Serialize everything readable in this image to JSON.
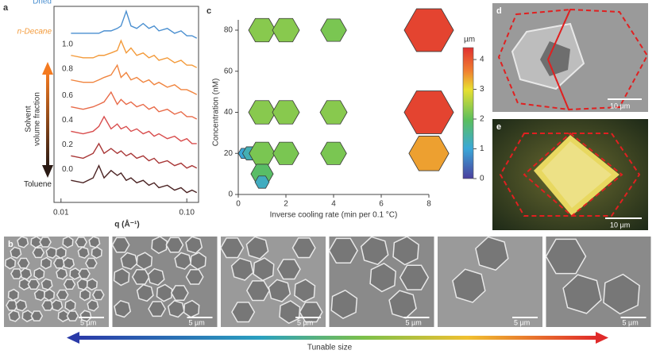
{
  "chart_data": [
    {
      "type": "line",
      "panel": "a",
      "xlabel": "q (Å⁻¹)",
      "ylabel": [
        "Solvent",
        "volume fraction"
      ],
      "log_x": true,
      "xlim": [
        0.0088,
        0.124
      ],
      "xticks": [
        0.01,
        {
          "value": 0.1,
          "label": "0.10"
        }
      ],
      "ylim": [
        0,
        80
      ],
      "x": [
        0.012,
        0.015,
        0.018,
        0.02,
        0.022,
        0.025,
        0.028,
        0.03,
        0.033,
        0.036,
        0.04,
        0.045,
        0.05,
        0.055,
        0.06,
        0.07,
        0.08,
        0.09,
        0.1,
        0.11,
        0.12
      ],
      "series": [
        {
          "name": "Dried",
          "color": "#4a8fd0",
          "values": [
            69,
            69,
            69,
            69,
            70,
            70,
            71,
            72,
            78,
            72,
            71,
            73,
            71,
            72,
            70,
            71,
            69,
            70,
            68,
            68,
            67
          ]
        },
        {
          "name": "1.0",
          "color": "#f39a3a",
          "values": [
            60,
            59,
            59,
            60,
            60,
            61,
            62,
            66,
            61,
            63,
            60,
            61,
            59,
            60,
            58,
            59,
            57,
            58,
            56,
            56,
            55
          ]
        },
        {
          "name": "0.8",
          "color": "#f0843e",
          "values": [
            50,
            49,
            49,
            50,
            51,
            52,
            56,
            51,
            53,
            50,
            51,
            49,
            50,
            48,
            49,
            47,
            48,
            46,
            46,
            45,
            44
          ]
        },
        {
          "name": "0.6",
          "color": "#e86a48",
          "values": [
            39,
            38,
            39,
            40,
            41,
            45,
            40,
            42,
            40,
            41,
            39,
            40,
            38,
            39,
            37,
            38,
            36,
            37,
            35,
            35,
            34
          ]
        },
        {
          "name": "0.4",
          "color": "#d84c4c",
          "values": [
            29,
            28,
            29,
            31,
            35,
            30,
            32,
            30,
            31,
            29,
            30,
            28,
            29,
            27,
            28,
            26,
            27,
            25,
            26,
            24,
            24
          ]
        },
        {
          "name": "0.2",
          "color": "#a83636",
          "values": [
            19,
            18,
            20,
            24,
            20,
            22,
            20,
            21,
            19,
            20,
            18,
            19,
            17,
            18,
            16,
            17,
            15,
            16,
            14,
            15,
            14
          ]
        },
        {
          "name": "0.0",
          "color": "#4a2222",
          "values": [
            9,
            8,
            10,
            15,
            10,
            13,
            11,
            12,
            9,
            10,
            8,
            9,
            7,
            8,
            6,
            7,
            5,
            6,
            4,
            5,
            4
          ]
        }
      ],
      "annotations": [
        {
          "text": "n-Decane",
          "color": "#f39a3a"
        },
        {
          "text": "Toluene",
          "color": "#222222"
        }
      ]
    },
    {
      "type": "bubble",
      "panel": "c",
      "xlabel": "Inverse cooling rate (min per 0.1 °C)",
      "ylabel": "Concentration (nM)",
      "xlim": [
        0,
        8
      ],
      "xticks": [
        0,
        2,
        4,
        6,
        8
      ],
      "ylim": [
        0,
        80
      ],
      "yticks": [
        0,
        20,
        40,
        60,
        80
      ],
      "colormap": "jet",
      "clim": [
        0,
        4.4
      ],
      "colorbar_label": "µm",
      "colorbar_ticks": [
        0,
        1,
        2,
        3,
        4
      ],
      "x": [
        1,
        2,
        4,
        8,
        1,
        2,
        4,
        8,
        0.25,
        0.5,
        1,
        2,
        4,
        8,
        1,
        1
      ],
      "y": [
        80,
        80,
        80,
        80,
        40,
        40,
        40,
        40,
        20,
        20,
        20,
        20,
        20,
        20,
        10,
        6
      ],
      "size": [
        2.3,
        2.3,
        2.2,
        4.2,
        2.3,
        2.3,
        2.3,
        4.2,
        1.0,
        1.3,
        2.2,
        2.2,
        2.2,
        3.4,
        1.9,
        1.2
      ]
    }
  ],
  "panel_labels": {
    "a": "a",
    "b": "b",
    "c": "c",
    "d": "d",
    "e": "e"
  },
  "scale_bars": {
    "d": "10 µm",
    "e": "10 µm",
    "b": [
      "5 µm",
      "5 µm",
      "5 µm",
      "5 µm",
      "5 µm",
      "5 µm"
    ]
  },
  "arrow_label": "Tunable size"
}
